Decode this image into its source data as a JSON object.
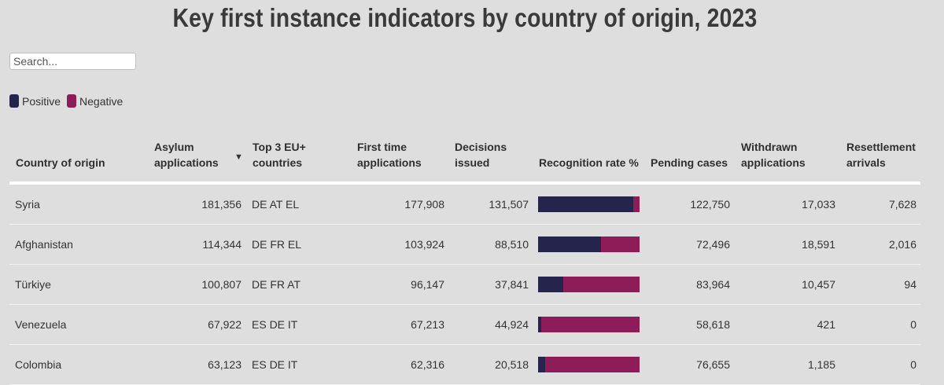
{
  "title": "Key first instance indicators by country of origin, 2023",
  "search": {
    "placeholder": "Search..."
  },
  "legend": [
    {
      "label": "Positive",
      "color": "#25244d"
    },
    {
      "label": "Negative",
      "color": "#8e1c58"
    }
  ],
  "columns": {
    "country": "Country of origin",
    "asylum": "Asylum\napplications",
    "top3": "Top 3 EU+\ncountries",
    "first_time": "First time\napplications",
    "decisions": "Decisions\nissued",
    "recognition": "Recognition rate %",
    "pending": "Pending cases",
    "withdrawn": "Withdrawn\napplications",
    "resettlement": "Resettlement\narrivals"
  },
  "sort_indicator": "▼",
  "rows": [
    {
      "country": "Syria",
      "asylum": "181,356",
      "top3": "DE AT EL",
      "first_time": "177,908",
      "decisions": "131,507",
      "recognition_rate": 0.94,
      "pending": "122,750",
      "withdrawn": "17,033",
      "resettlement": "7,628"
    },
    {
      "country": "Afghanistan",
      "asylum": "114,344",
      "top3": "DE FR EL",
      "first_time": "103,924",
      "decisions": "88,510",
      "recognition_rate": 0.62,
      "pending": "72,496",
      "withdrawn": "18,591",
      "resettlement": "2,016"
    },
    {
      "country": "Türkiye",
      "asylum": "100,807",
      "top3": "DE FR AT",
      "first_time": "96,147",
      "decisions": "37,841",
      "recognition_rate": 0.25,
      "pending": "83,964",
      "withdrawn": "10,457",
      "resettlement": "94"
    },
    {
      "country": "Venezuela",
      "asylum": "67,922",
      "top3": "ES DE IT",
      "first_time": "67,213",
      "decisions": "44,924",
      "recognition_rate": 0.03,
      "pending": "58,618",
      "withdrawn": "421",
      "resettlement": "0"
    },
    {
      "country": "Colombia",
      "asylum": "63,123",
      "top3": "ES DE IT",
      "first_time": "62,316",
      "decisions": "20,518",
      "recognition_rate": 0.07,
      "pending": "76,655",
      "withdrawn": "1,185",
      "resettlement": "0"
    }
  ]
}
